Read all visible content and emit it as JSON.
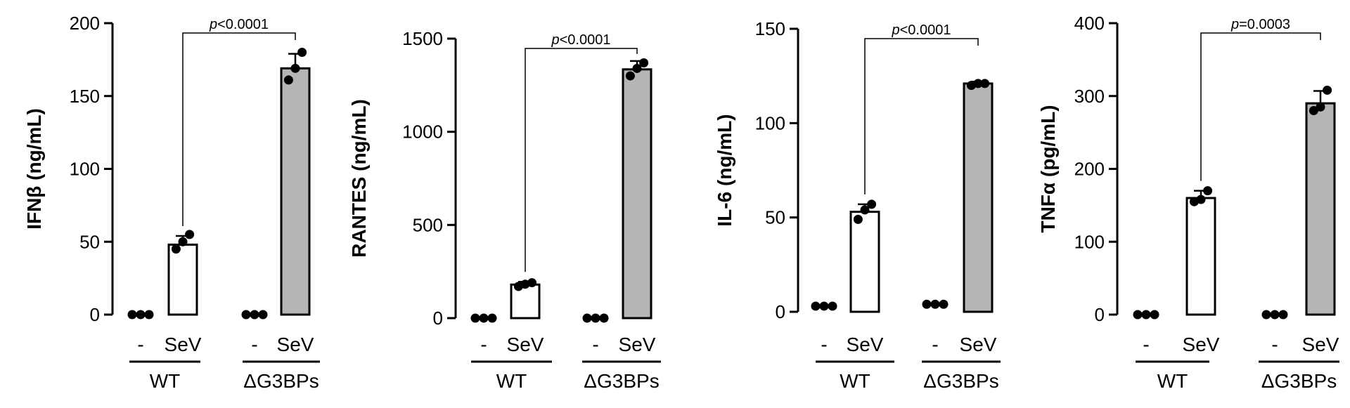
{
  "chart_data": [
    {
      "type": "bar",
      "ylabel": "IFNβ (ng/mL)",
      "ylim": [
        0,
        200
      ],
      "yticks": [
        0,
        50,
        100,
        150,
        200
      ],
      "categories": [
        "-",
        "SeV",
        "-",
        "SeV"
      ],
      "groups": [
        "WT",
        "ΔG3BPs"
      ],
      "values": [
        0,
        48,
        0,
        169
      ],
      "errors": [
        0,
        6,
        0,
        10
      ],
      "points": [
        [
          0,
          0,
          0
        ],
        [
          45,
          50,
          55
        ],
        [
          0,
          0,
          0
        ],
        [
          161,
          169,
          180
        ]
      ],
      "bar_colors": [
        "#ffffff",
        "#ffffff",
        "#ffffff",
        "#b5b5b5"
      ],
      "p_label_prefix": "p",
      "p_label_suffix": "<0.0001"
    },
    {
      "type": "bar",
      "ylabel": "RANTES (ng/mL)",
      "ylim": [
        0,
        1500
      ],
      "yticks": [
        0,
        500,
        1000,
        1500
      ],
      "categories": [
        "-",
        "SeV",
        "-",
        "SeV"
      ],
      "groups": [
        "WT",
        "ΔG3BPs"
      ],
      "values": [
        0,
        180,
        0,
        1335
      ],
      "errors": [
        0,
        15,
        0,
        45
      ],
      "points": [
        [
          0,
          0,
          0
        ],
        [
          170,
          182,
          190
        ],
        [
          0,
          0,
          0
        ],
        [
          1300,
          1340,
          1370
        ]
      ],
      "bar_colors": [
        "#ffffff",
        "#ffffff",
        "#ffffff",
        "#b5b5b5"
      ],
      "p_label_prefix": "p",
      "p_label_suffix": "<0.0001"
    },
    {
      "type": "bar",
      "ylabel": "IL-6 (ng/mL)",
      "ylim": [
        0,
        150
      ],
      "yticks": [
        0,
        50,
        100,
        150
      ],
      "categories": [
        "-",
        "SeV",
        "-",
        "SeV"
      ],
      "groups": [
        "WT",
        "ΔG3BPs"
      ],
      "values": [
        3,
        53,
        4,
        121
      ],
      "errors": [
        0,
        4,
        0,
        1
      ],
      "points": [
        [
          3,
          3,
          3
        ],
        [
          49,
          54,
          57
        ],
        [
          4,
          4,
          4
        ],
        [
          120,
          121,
          121
        ]
      ],
      "bar_colors": [
        "#ffffff",
        "#ffffff",
        "#ffffff",
        "#b5b5b5"
      ],
      "p_label_prefix": "p",
      "p_label_suffix": "<0.0001"
    },
    {
      "type": "bar",
      "ylabel": "TNFα (pg/mL)",
      "ylim": [
        0,
        400
      ],
      "yticks": [
        0,
        100,
        200,
        300,
        400
      ],
      "categories": [
        "-",
        "SeV",
        "-",
        "SeV"
      ],
      "groups": [
        "WT",
        "ΔG3BPs"
      ],
      "values": [
        0,
        160,
        0,
        290
      ],
      "errors": [
        0,
        10,
        0,
        17
      ],
      "points": [
        [
          0,
          0,
          0
        ],
        [
          155,
          158,
          170
        ],
        [
          0,
          0,
          0
        ],
        [
          280,
          285,
          308
        ]
      ],
      "bar_colors": [
        "#ffffff",
        "#ffffff",
        "#ffffff",
        "#b5b5b5"
      ],
      "p_label_prefix": "p",
      "p_label_suffix": "=0.0003"
    }
  ]
}
